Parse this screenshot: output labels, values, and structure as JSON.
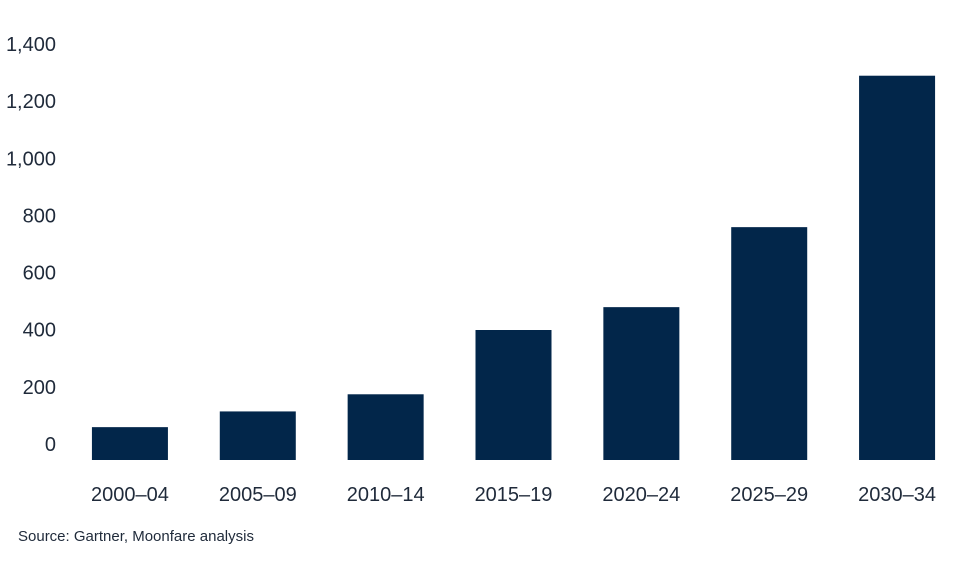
{
  "chart_data": {
    "type": "bar",
    "categories": [
      "2000–04",
      "2005–09",
      "2010–14",
      "2015–19",
      "2020–24",
      "2025–29",
      "2030–34"
    ],
    "values": [
      115,
      170,
      230,
      455,
      535,
      815,
      1345
    ],
    "ylim": [
      0,
      1400
    ],
    "yticks": [
      0,
      200,
      400,
      600,
      800,
      1000,
      1200,
      1400
    ],
    "ytick_labels": [
      "0",
      "200",
      "400",
      "600",
      "800",
      "1,000",
      "1,200",
      "1,400"
    ],
    "grid": false,
    "bar_color": "#02264a"
  },
  "source": "Source: Gartner, Moonfare analysis"
}
